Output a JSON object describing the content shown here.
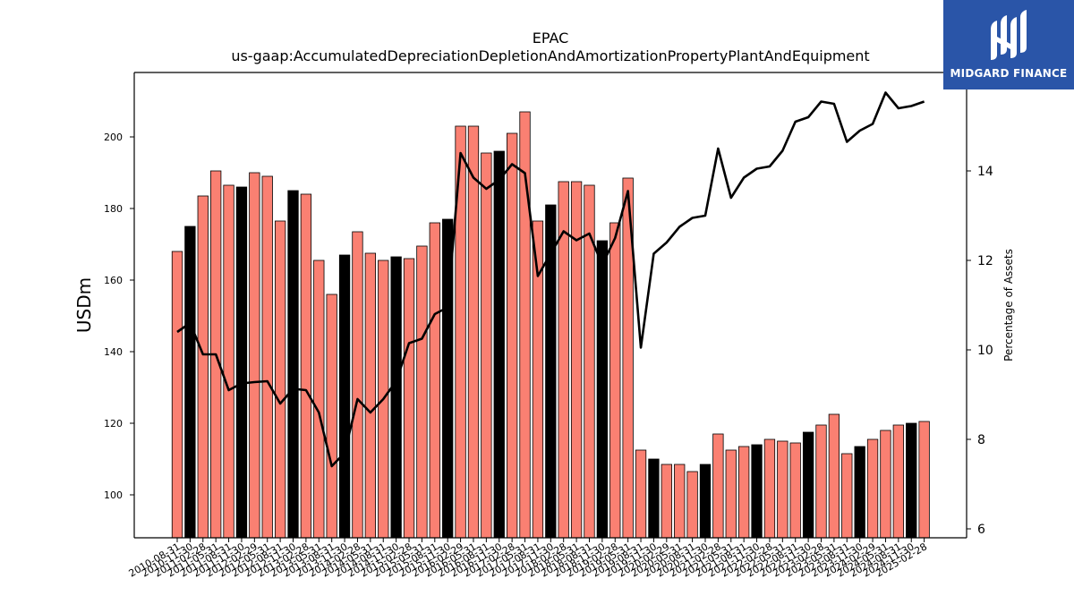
{
  "logo": {
    "text": "MIDGARD FINANCE",
    "icon": "midgard-finance-logo-icon",
    "bg_color": "#2a55a8"
  },
  "chart_data": {
    "type": "bar",
    "title": "EPAC",
    "subtitle": "us-gaap:AccumulatedDepreciationDepletionAndAmortizationPropertyPlantAndEquipment",
    "ylabel": "USDm",
    "y2label": "Percentage of Assets",
    "ylim": [
      88,
      218
    ],
    "y2lim": [
      5.8,
      16.2
    ],
    "yticks": [
      100,
      120,
      140,
      160,
      180,
      200
    ],
    "y2ticks": [
      6,
      8,
      10,
      12,
      14
    ],
    "grid": false,
    "colors": {
      "bar": "#fa8072",
      "bar_highlight": "#000000",
      "line": "#000000"
    },
    "categories": [
      "2010-08-31",
      "2010-11-30",
      "2011-02-28",
      "2011-05-31",
      "2011-08-31",
      "2011-11-30",
      "2012-02-29",
      "2012-05-31",
      "2012-08-31",
      "2012-11-30",
      "2013-02-28",
      "2013-05-31",
      "2013-08-31",
      "2013-11-30",
      "2014-02-28",
      "2014-05-31",
      "2014-08-31",
      "2014-11-30",
      "2015-02-28",
      "2015-05-31",
      "2015-08-31",
      "2015-11-30",
      "2016-02-29",
      "2016-05-31",
      "2016-08-31",
      "2016-11-30",
      "2017-02-28",
      "2017-05-31",
      "2017-08-31",
      "2017-11-30",
      "2018-02-28",
      "2018-05-31",
      "2018-08-31",
      "2018-11-30",
      "2019-02-28",
      "2019-05-31",
      "2019-08-31",
      "2019-11-30",
      "2020-02-29",
      "2020-05-31",
      "2020-08-31",
      "2020-11-30",
      "2021-02-28",
      "2021-05-31",
      "2021-08-31",
      "2021-11-30",
      "2022-02-28",
      "2022-05-31",
      "2022-08-31",
      "2022-11-30",
      "2023-02-28",
      "2023-05-31",
      "2023-08-31",
      "2023-11-30",
      "2024-02-29",
      "2024-05-31",
      "2024-08-31",
      "2024-11-30",
      "2025-02-28"
    ],
    "series": [
      {
        "type": "bar",
        "axis": "left",
        "values": [
          168,
          175,
          183.5,
          190.5,
          186.5,
          186,
          190,
          189,
          176.5,
          185,
          184,
          165.5,
          156,
          167,
          173.5,
          167.5,
          165.5,
          166.5,
          166,
          169.5,
          176,
          177,
          203,
          203,
          195.5,
          196,
          201,
          207,
          176.5,
          181,
          187.5,
          187.5,
          186.5,
          171,
          176,
          188.5,
          112.5,
          110,
          108.5,
          108.5,
          106.5,
          108.5,
          117,
          112.5,
          113.5,
          114,
          115.5,
          115,
          114.5,
          117.5,
          119.5,
          122.5,
          111.5,
          113.5,
          115.5,
          118,
          119.5,
          120,
          120.5
        ],
        "highlight": [
          false,
          true,
          false,
          false,
          false,
          true,
          false,
          false,
          false,
          true,
          false,
          false,
          false,
          true,
          false,
          false,
          false,
          true,
          false,
          false,
          false,
          true,
          false,
          false,
          false,
          true,
          false,
          false,
          false,
          true,
          false,
          false,
          false,
          true,
          false,
          false,
          false,
          true,
          false,
          false,
          false,
          true,
          false,
          false,
          false,
          true,
          false,
          false,
          false,
          true,
          false,
          false,
          false,
          true,
          false,
          false,
          false,
          true,
          false
        ]
      },
      {
        "type": "line",
        "axis": "right",
        "values": [
          10.4,
          10.6,
          9.9,
          9.9,
          9.1,
          9.25,
          9.28,
          9.3,
          8.8,
          9.13,
          9.1,
          8.6,
          7.4,
          7.7,
          8.9,
          8.6,
          8.9,
          9.3,
          10.15,
          10.25,
          10.8,
          10.95,
          14.4,
          13.85,
          13.6,
          13.8,
          14.15,
          13.95,
          11.65,
          12.15,
          12.65,
          12.45,
          12.6,
          11.9,
          12.5,
          13.55,
          10.05,
          12.15,
          12.4,
          12.75,
          12.95,
          13.0,
          14.5,
          13.4,
          13.85,
          14.05,
          14.1,
          14.45,
          15.1,
          15.2,
          15.55,
          15.5,
          14.65,
          14.9,
          15.05,
          15.75,
          15.4,
          15.45,
          15.55
        ]
      }
    ]
  }
}
